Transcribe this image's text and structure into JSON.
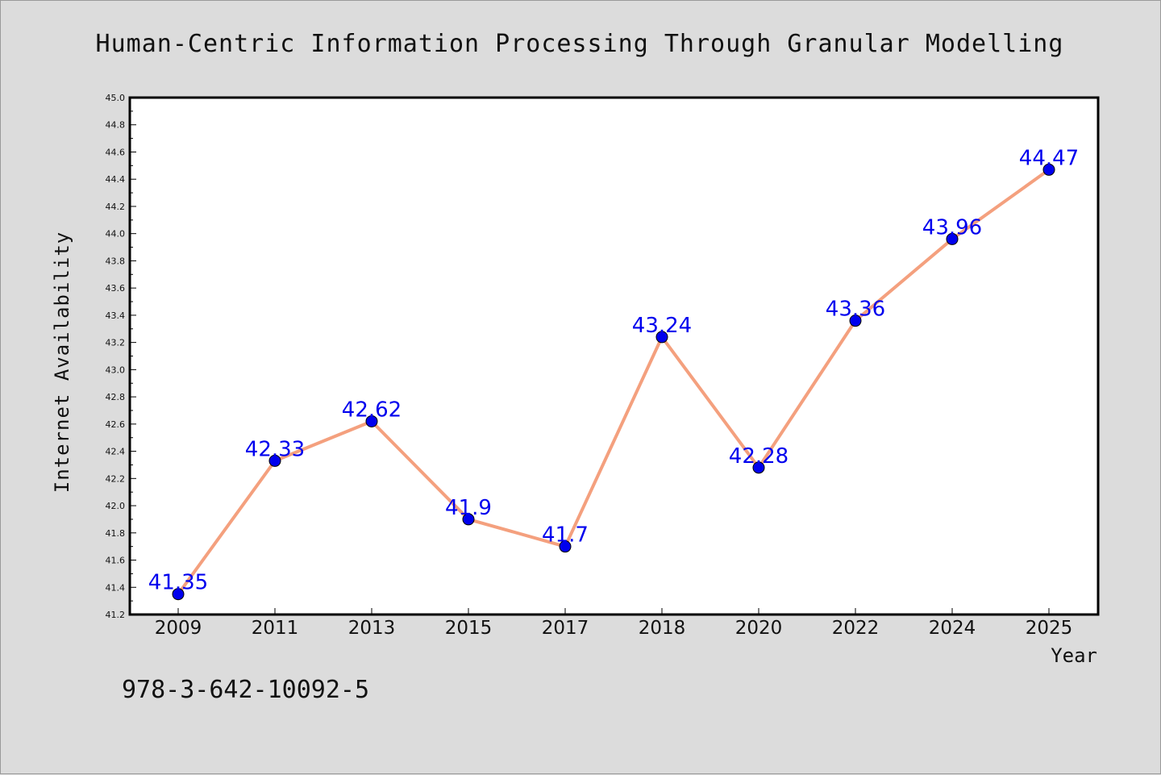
{
  "chart_data": {
    "type": "line",
    "title": "Human-Centric Information Processing Through Granular Modelling",
    "xlabel": "Year",
    "ylabel": "Internet Availability",
    "categories": [
      "2009",
      "2011",
      "2013",
      "2015",
      "2017",
      "2018",
      "2020",
      "2022",
      "2024",
      "2025"
    ],
    "series": [
      {
        "values": [
          41.35,
          42.33,
          42.62,
          41.9,
          41.7,
          43.24,
          42.28,
          43.36,
          43.96,
          44.47
        ],
        "data_labels": [
          "41.35",
          "42.33",
          "42.62",
          "41.9",
          "41.7",
          "43.24",
          "42.28",
          "43.36",
          "43.96",
          "44.47"
        ],
        "line_color": "#f4a07e",
        "marker_color": "#0000ee"
      }
    ],
    "ylim": [
      41.2,
      45.0
    ],
    "y_ticks": [
      "41.2",
      "41.4",
      "41.6",
      "41.8",
      "42.0",
      "42.2",
      "42.4",
      "42.6",
      "42.8",
      "43.0",
      "43.2",
      "43.4",
      "43.6",
      "43.8",
      "44.0",
      "44.2",
      "44.4",
      "44.6",
      "44.8",
      "45.0"
    ],
    "grid": false,
    "legend": "none",
    "label_color": "#0000ee"
  },
  "footer": {
    "isbn": "978-3-642-10092-5"
  }
}
